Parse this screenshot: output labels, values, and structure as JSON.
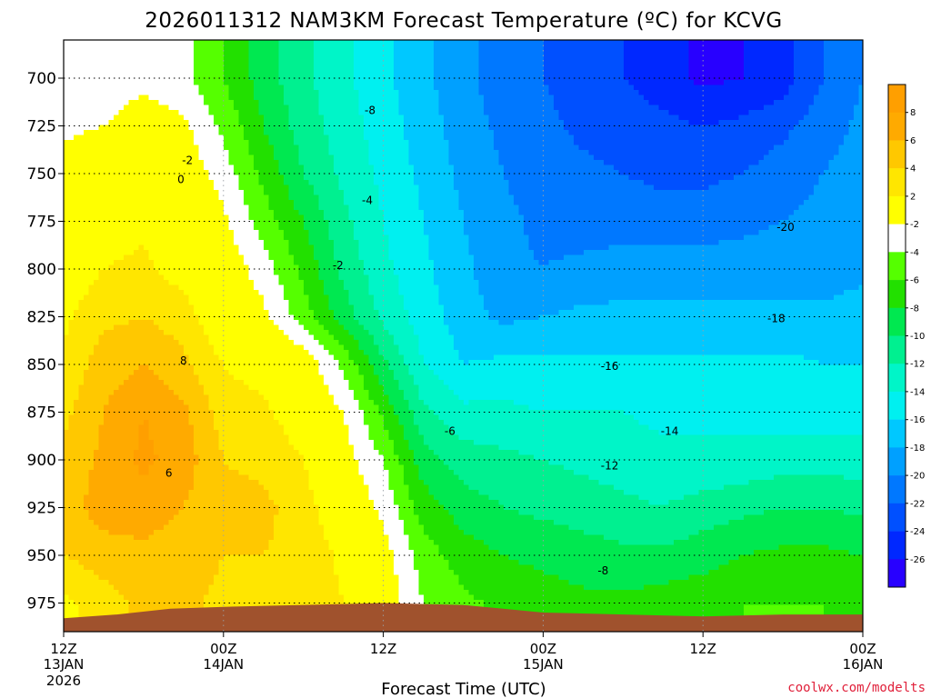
{
  "chart_data": {
    "type": "heatmap",
    "title": "2026011312 NAM3KM Forecast Temperature (ºC) for KCVG",
    "xlabel": "Forecast Time (UTC)",
    "ylabel": "",
    "units": "ºC",
    "x_ticks": [
      {
        "hour": 0,
        "time": "12Z",
        "date": "13JAN",
        "year": "2026"
      },
      {
        "hour": 12,
        "time": "00Z",
        "date": "14JAN",
        "year": ""
      },
      {
        "hour": 24,
        "time": "12Z",
        "date": "",
        "year": ""
      },
      {
        "hour": 36,
        "time": "00Z",
        "date": "15JAN",
        "year": ""
      },
      {
        "hour": 48,
        "time": "12Z",
        "date": "",
        "year": ""
      },
      {
        "hour": 60,
        "time": "00Z",
        "date": "16JAN",
        "year": ""
      }
    ],
    "xlim": [
      0,
      60
    ],
    "y_ticks": [
      700,
      725,
      750,
      775,
      800,
      825,
      850,
      875,
      900,
      925,
      950,
      975
    ],
    "ylim": [
      680,
      990
    ],
    "y_inverted": true,
    "grid": true,
    "colorbar": {
      "placement": "right",
      "levels": [
        8,
        6,
        4,
        2,
        -2,
        -4,
        -6,
        -8,
        -10,
        -12,
        -14,
        -16,
        -18,
        -20,
        -22,
        -24,
        -26
      ],
      "colors": [
        "#ff9f00",
        "#ffaa00",
        "#ffc800",
        "#ffe600",
        "#ffff00",
        "#ffffff",
        "#55ff00",
        "#22e000",
        "#00e850",
        "#00f090",
        "#00f5c8",
        "#00f0f0",
        "#00c8ff",
        "#00a0ff",
        "#0078ff",
        "#0050ff",
        "#0028ff",
        "#2800ff"
      ]
    },
    "contour_labels": [
      {
        "text": "-8",
        "hour": 23.0,
        "p": 717
      },
      {
        "text": "-2",
        "hour": 9.3,
        "p": 743
      },
      {
        "text": "0",
        "hour": 8.8,
        "p": 753
      },
      {
        "text": "-4",
        "hour": 22.8,
        "p": 764
      },
      {
        "text": "-2",
        "hour": 20.6,
        "p": 798
      },
      {
        "text": "-20",
        "hour": 54.2,
        "p": 778
      },
      {
        "text": "-18",
        "hour": 53.5,
        "p": 826
      },
      {
        "text": "-16",
        "hour": 41.0,
        "p": 851
      },
      {
        "text": "8",
        "hour": 9.0,
        "p": 848
      },
      {
        "text": "-6",
        "hour": 29.0,
        "p": 885
      },
      {
        "text": "-14",
        "hour": 45.5,
        "p": 885
      },
      {
        "text": "6",
        "hour": 7.9,
        "p": 907
      },
      {
        "text": "-12",
        "hour": 41.0,
        "p": 903
      },
      {
        "text": "-8",
        "hour": 40.5,
        "p": 958
      }
    ],
    "grid_hours": [
      0,
      3,
      6,
      9,
      12,
      15,
      18,
      21,
      24,
      27,
      30,
      33,
      36,
      39,
      42,
      45,
      48,
      51,
      54,
      57,
      60
    ],
    "grid_levels": [
      700,
      725,
      750,
      775,
      800,
      825,
      850,
      875,
      900,
      925,
      950,
      975
    ],
    "temperature_grid": [
      [
        -3.5,
        -3.0,
        -2.5,
        -3.5,
        -6.0,
        -9.0,
        -11.5,
        -13.5,
        -15.5,
        -17.5,
        -19.5,
        -21.0,
        -22.0,
        -23.0,
        -24.0,
        -25.0,
        -26.5,
        -26.0,
        -25.0,
        -22.0,
        -20.0
      ],
      [
        -2.5,
        -2.0,
        -1.0,
        -1.5,
        -4.5,
        -8.0,
        -11.0,
        -13.0,
        -15.0,
        -17.0,
        -19.0,
        -20.5,
        -21.5,
        -22.5,
        -23.0,
        -23.5,
        -24.0,
        -23.5,
        -22.5,
        -21.0,
        -19.5
      ],
      [
        -1.0,
        0.0,
        0.5,
        -0.5,
        -3.0,
        -6.5,
        -10.0,
        -12.5,
        -14.5,
        -16.5,
        -18.5,
        -20.0,
        -21.0,
        -21.5,
        -22.0,
        -22.5,
        -22.5,
        -22.0,
        -21.0,
        -20.0,
        -19.0
      ],
      [
        0.0,
        1.0,
        1.5,
        0.5,
        -1.5,
        -5.0,
        -8.0,
        -11.5,
        -14.0,
        -16.0,
        -18.0,
        -19.5,
        -20.5,
        -21.0,
        -21.0,
        -21.0,
        -21.0,
        -20.5,
        -20.0,
        -19.5,
        -19.0
      ],
      [
        0.5,
        2.0,
        2.5,
        1.0,
        -0.5,
        -3.0,
        -6.5,
        -10.5,
        -13.5,
        -15.5,
        -17.5,
        -19.5,
        -20.0,
        -19.5,
        -19.0,
        -19.0,
        -19.0,
        -19.0,
        -19.0,
        -19.0,
        -18.5
      ],
      [
        1.5,
        3.5,
        4.0,
        3.0,
        0.0,
        -1.5,
        -5.0,
        -9.0,
        -12.5,
        -15.0,
        -17.0,
        -18.5,
        -18.0,
        -17.5,
        -17.5,
        -17.5,
        -17.5,
        -17.5,
        -17.5,
        -17.5,
        -17.0
      ],
      [
        2.5,
        5.0,
        6.0,
        4.5,
        2.0,
        1.0,
        -0.5,
        -4.5,
        -9.5,
        -14.0,
        -16.0,
        -15.5,
        -15.5,
        -15.5,
        -15.5,
        -15.5,
        -15.5,
        -15.5,
        -15.5,
        -16.0,
        -16.0
      ],
      [
        3.5,
        6.0,
        8.0,
        6.5,
        3.0,
        2.5,
        0.5,
        -2.0,
        -6.5,
        -11.5,
        -13.5,
        -13.5,
        -14.0,
        -14.0,
        -14.0,
        -14.5,
        -14.0,
        -14.5,
        -15.0,
        -15.0,
        -15.0
      ],
      [
        4.5,
        6.5,
        8.5,
        7.0,
        4.0,
        3.5,
        2.0,
        -1.0,
        -4.0,
        -9.0,
        -11.0,
        -11.5,
        -12.0,
        -12.5,
        -13.0,
        -13.5,
        -14.0,
        -13.5,
        -13.0,
        -13.0,
        -13.0
      ],
      [
        5.0,
        7.0,
        7.0,
        6.0,
        4.5,
        4.5,
        3.0,
        0.0,
        -2.5,
        -7.0,
        -9.0,
        -10.0,
        -10.5,
        -11.0,
        -11.5,
        -12.0,
        -11.0,
        -10.5,
        -10.0,
        -10.0,
        -10.5
      ],
      [
        4.0,
        5.0,
        5.5,
        5.0,
        4.0,
        4.0,
        3.5,
        1.5,
        -1.0,
        -5.0,
        -7.0,
        -8.0,
        -8.5,
        -9.0,
        -9.5,
        -9.5,
        -9.0,
        -8.0,
        -7.5,
        -7.5,
        -8.0
      ],
      [
        1.5,
        3.0,
        4.5,
        4.5,
        3.5,
        3.5,
        3.0,
        2.0,
        -0.5,
        -4.0,
        -5.5,
        -6.5,
        -7.0,
        -7.5,
        -7.5,
        -7.0,
        -6.5,
        -6.0,
        -6.0,
        -6.0,
        -6.5
      ]
    ]
  },
  "credit": "coolwx.com/modelts"
}
